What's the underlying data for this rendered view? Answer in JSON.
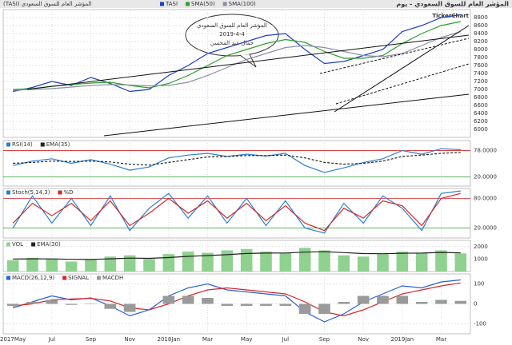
{
  "title": "المؤشر العام للسوق السعودي - يوم",
  "logo": "TickerChart",
  "chart_data": [
    {
      "type": "line",
      "subtitle": "(TASI) المؤشر العام للسوق السعودي",
      "annotation": [
        "المؤشر العام للسوق السعودي",
        "2019-4-4",
        "جمال عبد المحسن"
      ],
      "series": [
        {
          "name": "TASI",
          "color": "#1f3fbf",
          "style": "line",
          "values": [
            6950,
            7050,
            7200,
            7100,
            7300,
            7150,
            6950,
            7000,
            7350,
            7600,
            7900,
            8050,
            8200,
            8350,
            8400,
            8000,
            7650,
            7700,
            7850,
            8000,
            8450,
            8600,
            8800,
            8870
          ]
        },
        {
          "name": "SMA(50)",
          "color": "#2e9e2e",
          "style": "line",
          "values": [
            7000,
            7020,
            7080,
            7120,
            7160,
            7180,
            7100,
            7040,
            7150,
            7350,
            7600,
            7850,
            8000,
            8150,
            8250,
            8180,
            7950,
            7780,
            7780,
            7850,
            8150,
            8400,
            8600,
            8700
          ]
        },
        {
          "name": "SMA(100)",
          "color": "#8a8fa8",
          "style": "line",
          "values": [
            6980,
            7000,
            7020,
            7060,
            7100,
            7120,
            7110,
            7090,
            7100,
            7180,
            7350,
            7550,
            7750,
            7900,
            8050,
            8100,
            8050,
            7950,
            7850,
            7820,
            7900,
            8100,
            8300,
            8450
          ]
        }
      ],
      "ylim": [
        5800,
        9000
      ],
      "yticks": [
        6000,
        6200,
        6400,
        6600,
        6800,
        7000,
        7200,
        7400,
        7600,
        7800,
        8000,
        8200,
        8400,
        8600,
        8800
      ]
    },
    {
      "type": "line",
      "series": [
        {
          "name": "RSI(14)",
          "color": "#2a7fd4",
          "style": "line",
          "values": [
            45,
            55,
            60,
            50,
            58,
            48,
            35,
            42,
            62,
            68,
            72,
            65,
            70,
            66,
            72,
            45,
            30,
            40,
            52,
            60,
            78,
            70,
            82,
            80
          ]
        },
        {
          "name": "EMA(35)",
          "color": "#222222",
          "style": "dashed",
          "values": [
            50,
            52,
            55,
            54,
            55,
            53,
            48,
            46,
            52,
            58,
            64,
            65,
            67,
            67,
            68,
            62,
            52,
            48,
            50,
            55,
            65,
            68,
            72,
            74
          ]
        }
      ],
      "ylim": [
        0,
        100
      ],
      "yticks": [
        {
          "value": 20,
          "label": "20.0000"
        },
        {
          "value": 78,
          "label": "78.0000"
        }
      ],
      "grid_colors": [
        "#2a9d2a",
        "#d62728"
      ]
    },
    {
      "type": "line",
      "series": [
        {
          "name": "Stoch(5,14,3)",
          "color": "#2a7fd4",
          "style": "line",
          "values": [
            20,
            85,
            30,
            80,
            25,
            85,
            15,
            60,
            90,
            40,
            85,
            30,
            80,
            25,
            75,
            20,
            10,
            70,
            30,
            85,
            60,
            15,
            90,
            95
          ]
        },
        {
          "name": "%D",
          "color": "#d62728",
          "style": "line",
          "values": [
            30,
            70,
            45,
            70,
            35,
            75,
            25,
            50,
            80,
            50,
            75,
            40,
            70,
            35,
            65,
            30,
            15,
            60,
            40,
            75,
            65,
            25,
            80,
            90
          ]
        }
      ],
      "ylim": [
        0,
        100
      ],
      "yticks": [
        {
          "value": 20,
          "label": "20.0000"
        },
        {
          "value": 80,
          "label": "80.0000"
        }
      ],
      "grid_colors": [
        "#2a9d2a",
        "#d62728"
      ]
    },
    {
      "type": "bar",
      "series": [
        {
          "name": "VOL",
          "color": "#8fd18f",
          "style": "bar",
          "values": [
            900,
            1100,
            1000,
            800,
            950,
            1200,
            1300,
            1000,
            1400,
            1600,
            1500,
            1700,
            1800,
            1600,
            1500,
            1900,
            1700,
            1300,
            1200,
            1400,
            1600,
            1500,
            1700,
            1450
          ]
        },
        {
          "name": "EMA(30)",
          "color": "#222222",
          "style": "line",
          "values": [
            1000,
            1020,
            1010,
            980,
            970,
            1020,
            1080,
            1060,
            1120,
            1220,
            1280,
            1350,
            1450,
            1480,
            1490,
            1560,
            1590,
            1520,
            1440,
            1430,
            1470,
            1480,
            1530,
            1500
          ]
        }
      ],
      "ylim": [
        0,
        2500
      ],
      "yticks": [
        1000,
        2000
      ]
    },
    {
      "type": "bar",
      "categories": [
        "2017May",
        null,
        "Jul",
        null,
        "Sep",
        null,
        "Nov",
        null,
        "2018Jan",
        null,
        "Mar",
        null,
        "May",
        null,
        "Jul",
        null,
        "Sep",
        null,
        "Nov",
        null,
        "2019Jan",
        null,
        "Mar",
        null
      ],
      "series": [
        {
          "name": "MACD(26,12,9)",
          "color": "#2a5fd4",
          "style": "line",
          "values": [
            -20,
            10,
            40,
            20,
            30,
            -10,
            -60,
            -30,
            40,
            80,
            100,
            70,
            60,
            50,
            40,
            -40,
            -90,
            -50,
            10,
            50,
            90,
            80,
            110,
            120
          ]
        },
        {
          "name": "SIGNAL",
          "color": "#d62728",
          "style": "line",
          "values": [
            -10,
            0,
            20,
            25,
            28,
            15,
            -20,
            -30,
            0,
            40,
            70,
            80,
            70,
            60,
            50,
            10,
            -40,
            -60,
            -30,
            10,
            50,
            70,
            90,
            105
          ]
        },
        {
          "name": "MACDH",
          "color": "#9a9a9a",
          "style": "bar",
          "values": [
            -10,
            10,
            20,
            -5,
            2,
            -25,
            -40,
            0,
            40,
            40,
            30,
            -10,
            -10,
            -10,
            -10,
            -50,
            -50,
            10,
            40,
            40,
            40,
            10,
            20,
            15
          ]
        }
      ],
      "ylim": [
        -150,
        150
      ],
      "yticks": [
        -100,
        0,
        100
      ]
    }
  ]
}
